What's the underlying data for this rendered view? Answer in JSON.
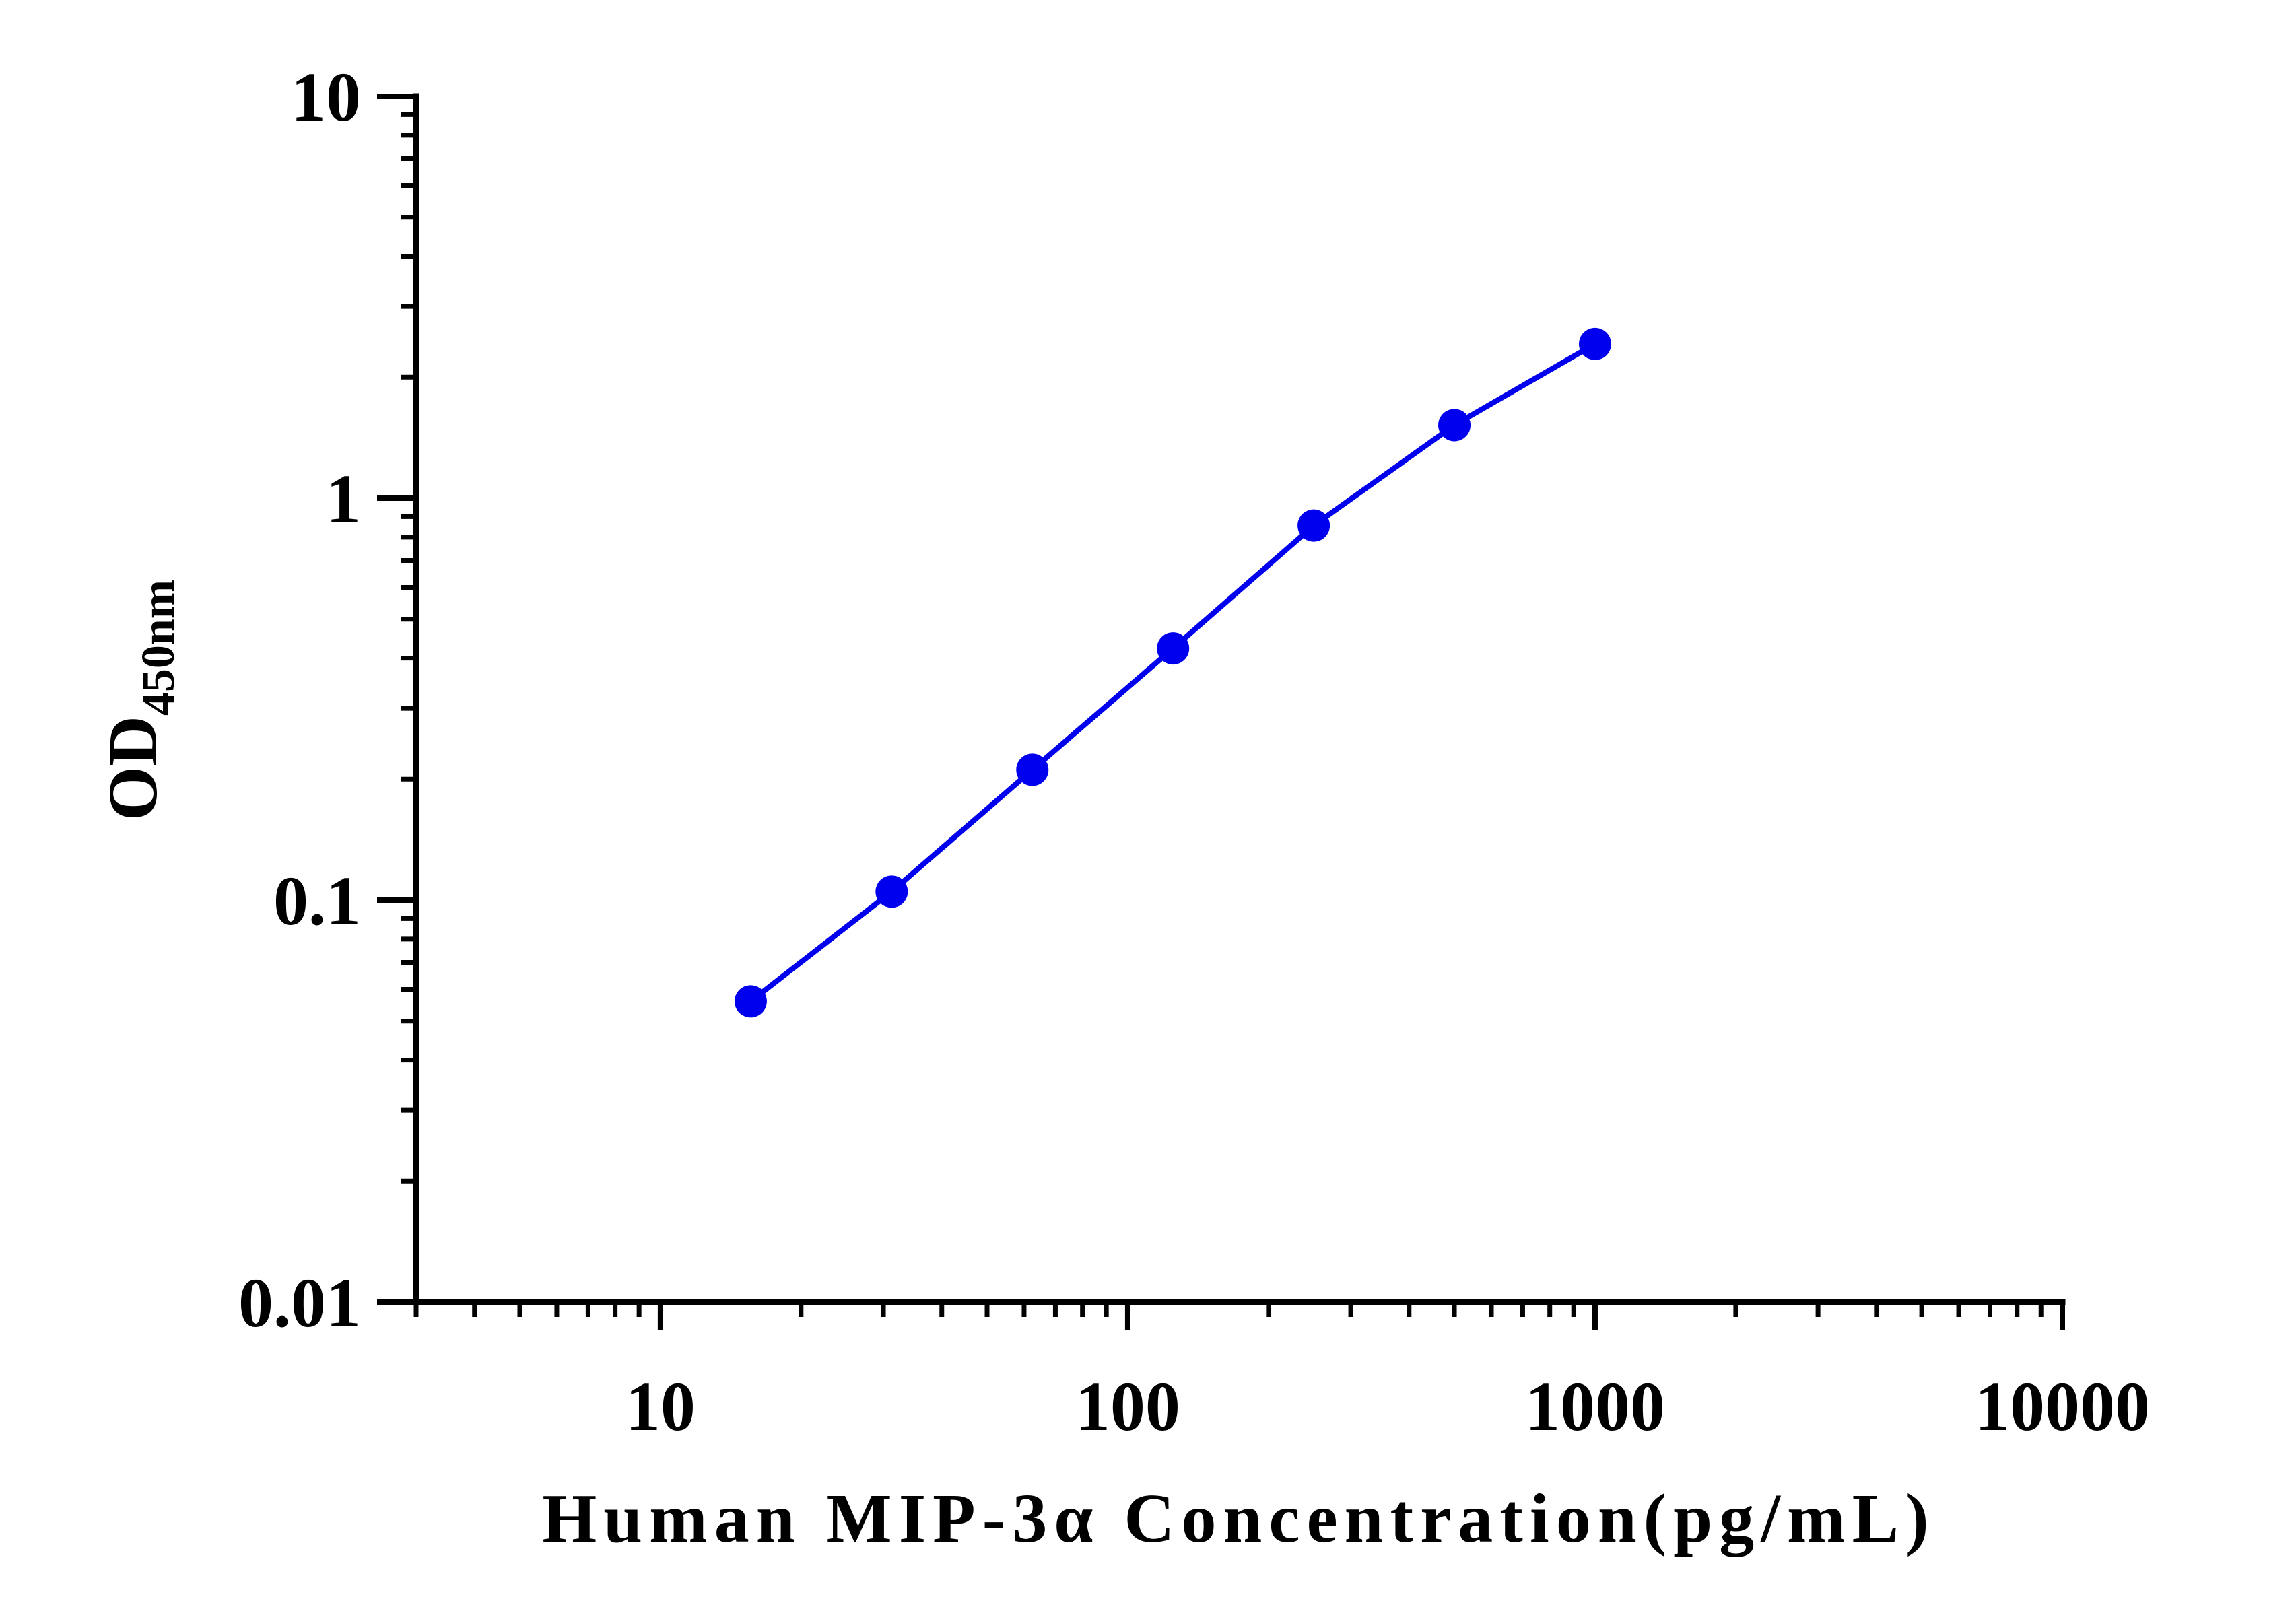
{
  "chart_data": {
    "type": "line",
    "xlabel": "Human MIP-3α Concentration(pg/mL)",
    "ylabel_main": "OD",
    "ylabel_subscript": "450nm",
    "x_scale": "log",
    "y_scale": "log",
    "xlim": [
      3,
      10000
    ],
    "ylim": [
      0.01,
      10
    ],
    "x_ticks": [
      {
        "value": 10,
        "label": "10"
      },
      {
        "value": 100,
        "label": "100"
      },
      {
        "value": 1000,
        "label": "1000"
      },
      {
        "value": 10000,
        "label": "10000"
      }
    ],
    "y_ticks": [
      {
        "value": 0.01,
        "label": "0.01"
      },
      {
        "value": 0.1,
        "label": "0.1"
      },
      {
        "value": 1,
        "label": "1"
      },
      {
        "value": 10,
        "label": "10"
      }
    ],
    "grid": false,
    "legend": "none",
    "series": [
      {
        "color": "#0000ee",
        "points": [
          {
            "x": 15.6,
            "y": 0.056
          },
          {
            "x": 31.25,
            "y": 0.105
          },
          {
            "x": 62.5,
            "y": 0.211
          },
          {
            "x": 125,
            "y": 0.423
          },
          {
            "x": 250,
            "y": 0.855
          },
          {
            "x": 500,
            "y": 1.52
          },
          {
            "x": 1000,
            "y": 2.42
          }
        ]
      }
    ]
  }
}
